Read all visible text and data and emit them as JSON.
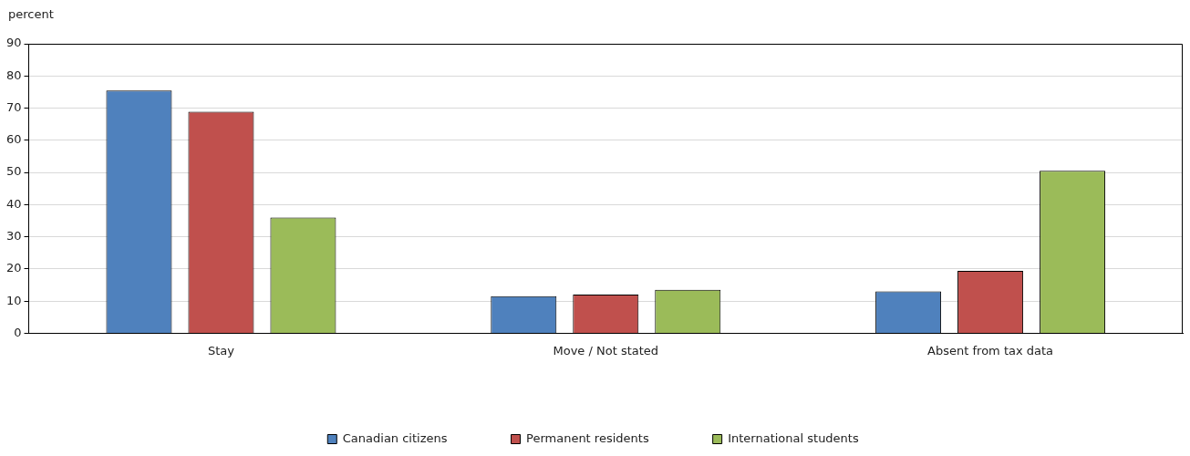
{
  "chart_data": {
    "type": "bar",
    "ylabel": "percent",
    "categories": [
      "Stay",
      "Move / Not stated",
      "Absent from tax data"
    ],
    "series": [
      {
        "name": "Canadian citizens",
        "color": "#4f81bd",
        "values": [
          75.5,
          11.5,
          13.0
        ]
      },
      {
        "name": "Permanent residents",
        "color": "#c0504d",
        "values": [
          68.9,
          12.0,
          19.4
        ]
      },
      {
        "name": "International students",
        "color": "#9bbb59",
        "values": [
          36.0,
          13.5,
          50.5
        ]
      }
    ],
    "ylim": [
      0,
      90
    ],
    "yticks": [
      0,
      10,
      20,
      30,
      40,
      50,
      60,
      70,
      80,
      90
    ],
    "grid": "y",
    "legend": "bottom"
  }
}
